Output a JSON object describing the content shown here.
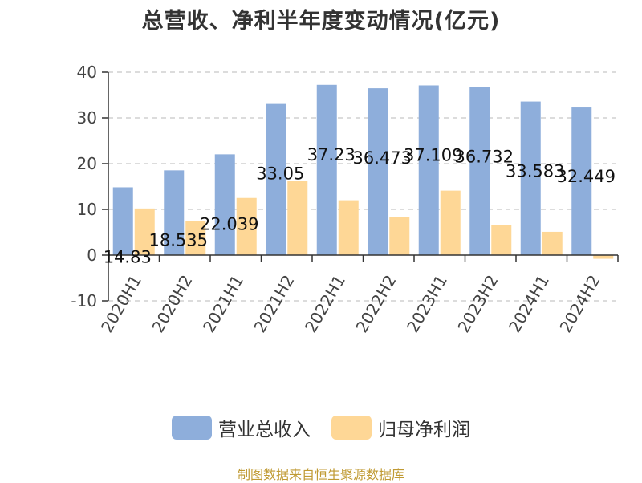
{
  "chart_data": {
    "type": "bar",
    "title": "总营收、净利半年度变动情况(亿元)",
    "categories": [
      "2020H1",
      "2020H2",
      "2021H1",
      "2021H2",
      "2022H1",
      "2022H2",
      "2023H1",
      "2023H2",
      "2024H1",
      "2024H2"
    ],
    "series": [
      {
        "name": "营业总收入",
        "color": "#8eaedb",
        "values": [
          14.83,
          18.535,
          22.039,
          33.05,
          37.23,
          36.473,
          37.109,
          36.732,
          33.583,
          32.449
        ],
        "labels": [
          "14.83",
          "18.535",
          "22.039",
          "33.05",
          "37.23",
          "36.473",
          "37.109",
          "36.732",
          "33.583",
          "32.449"
        ]
      },
      {
        "name": "归母净利润",
        "color": "#fed796",
        "values": [
          10.2,
          7.5,
          12.5,
          16.3,
          12.0,
          8.4,
          14.1,
          6.5,
          5.1,
          -0.8
        ]
      }
    ],
    "ylim": [
      -10,
      40
    ],
    "yticks": [
      -10,
      0,
      10,
      20,
      30,
      40
    ],
    "grid": true,
    "legend_position": "bottom"
  },
  "source_note": "制图数据来自恒生聚源数据库"
}
